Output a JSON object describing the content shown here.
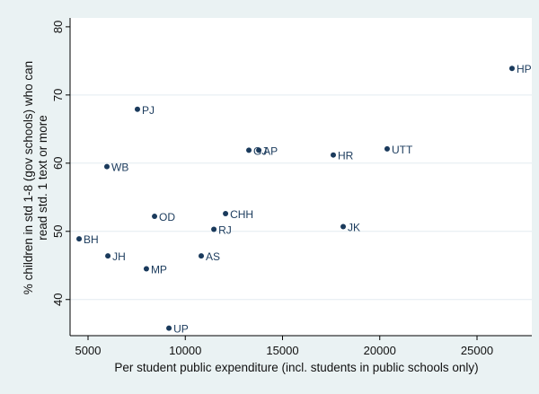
{
  "chart_data": {
    "type": "scatter",
    "title": "",
    "xlabel": "Per student public expenditure (incl. students in public schools only)",
    "ylabel_lines": [
      "% children in std 1-8 (gov schools) who can",
      "read std. 1 text or more"
    ],
    "xlim": [
      4076,
      27818
    ],
    "ylim": [
      34.7,
      81.3
    ],
    "xticks": [
      5000,
      10000,
      15000,
      20000,
      25000
    ],
    "yticks": [
      40,
      50,
      60,
      70,
      80
    ],
    "grid": "horizontal",
    "marker_color": "#1a3a5c",
    "points": [
      {
        "label": "HP",
        "x": 26800,
        "y": 73.9
      },
      {
        "label": "PJ",
        "x": 7540,
        "y": 67.9
      },
      {
        "label": "GJ",
        "x": 13270,
        "y": 61.9
      },
      {
        "label": "AP",
        "x": 13780,
        "y": 61.9
      },
      {
        "label": "WB",
        "x": 5970,
        "y": 59.5
      },
      {
        "label": "HR",
        "x": 17610,
        "y": 61.2
      },
      {
        "label": "UTT",
        "x": 20380,
        "y": 62.1
      },
      {
        "label": "OD",
        "x": 8420,
        "y": 52.2
      },
      {
        "label": "CHH",
        "x": 12070,
        "y": 52.6
      },
      {
        "label": "RJ",
        "x": 11470,
        "y": 50.3
      },
      {
        "label": "JK",
        "x": 18120,
        "y": 50.7
      },
      {
        "label": "BH",
        "x": 4540,
        "y": 48.9
      },
      {
        "label": "JH",
        "x": 6020,
        "y": 46.4
      },
      {
        "label": "AS",
        "x": 10820,
        "y": 46.4
      },
      {
        "label": "MP",
        "x": 8000,
        "y": 44.5
      },
      {
        "label": "UP",
        "x": 9160,
        "y": 35.8
      }
    ]
  }
}
